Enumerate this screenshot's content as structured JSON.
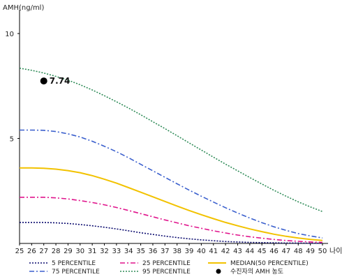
{
  "chart_data": {
    "type": "line",
    "ylabel": "AMH(ng/ml)",
    "xlabel": "나이",
    "x": [
      25,
      26,
      27,
      28,
      29,
      30,
      31,
      32,
      33,
      34,
      35,
      36,
      37,
      38,
      39,
      40,
      41,
      42,
      43,
      44,
      45,
      46,
      47,
      48,
      49,
      50
    ],
    "y_ticks": [
      "5",
      "10"
    ],
    "xlim": [
      25,
      50
    ],
    "ylim": [
      0,
      11
    ],
    "grid": false,
    "legend_position": "bottom",
    "series": [
      {
        "name": "5 PERCENTILE",
        "color": "#0a0a6e",
        "dash": "dotted",
        "values": [
          1.0,
          1.0,
          1.0,
          0.98,
          0.95,
          0.9,
          0.84,
          0.77,
          0.69,
          0.6,
          0.51,
          0.43,
          0.35,
          0.28,
          0.22,
          0.17,
          0.13,
          0.09,
          0.07,
          0.05,
          0.04,
          0.03,
          0.02,
          0.02,
          0.01,
          0.01
        ]
      },
      {
        "name": "25 PERCENTILE",
        "color": "#e0148c",
        "dash": "dashdot",
        "values": [
          2.2,
          2.2,
          2.2,
          2.17,
          2.12,
          2.04,
          1.95,
          1.84,
          1.71,
          1.57,
          1.42,
          1.27,
          1.12,
          0.98,
          0.84,
          0.72,
          0.6,
          0.5,
          0.4,
          0.32,
          0.25,
          0.19,
          0.14,
          0.1,
          0.07,
          0.05
        ]
      },
      {
        "name": "MEDIAN(50 PERCENTILE)",
        "color": "#f2c200",
        "dash": "solid",
        "values": [
          3.6,
          3.6,
          3.58,
          3.54,
          3.47,
          3.37,
          3.23,
          3.06,
          2.87,
          2.66,
          2.44,
          2.22,
          2.0,
          1.78,
          1.57,
          1.37,
          1.18,
          1.0,
          0.84,
          0.69,
          0.56,
          0.44,
          0.34,
          0.26,
          0.19,
          0.14
        ]
      },
      {
        "name": "75 PERCENTILE",
        "color": "#3a5fcd",
        "dash": "dashdot",
        "values": [
          5.4,
          5.4,
          5.39,
          5.33,
          5.22,
          5.07,
          4.87,
          4.63,
          4.37,
          4.08,
          3.77,
          3.46,
          3.15,
          2.84,
          2.54,
          2.25,
          1.97,
          1.7,
          1.45,
          1.21,
          0.99,
          0.79,
          0.62,
          0.47,
          0.36,
          0.26
        ]
      },
      {
        "name": "95 PERCENTILE",
        "color": "#2e8b57",
        "dash": "dotted",
        "values": [
          8.35,
          8.25,
          8.12,
          7.96,
          7.78,
          7.56,
          7.31,
          7.04,
          6.75,
          6.45,
          6.13,
          5.8,
          5.47,
          5.13,
          4.79,
          4.45,
          4.11,
          3.78,
          3.46,
          3.14,
          2.83,
          2.53,
          2.25,
          1.98,
          1.74,
          1.52
        ]
      }
    ],
    "point": {
      "legend_label": "수진자의 AMH 농도",
      "x": 27,
      "y": 7.74,
      "label": "7.74",
      "color": "#000000"
    }
  }
}
